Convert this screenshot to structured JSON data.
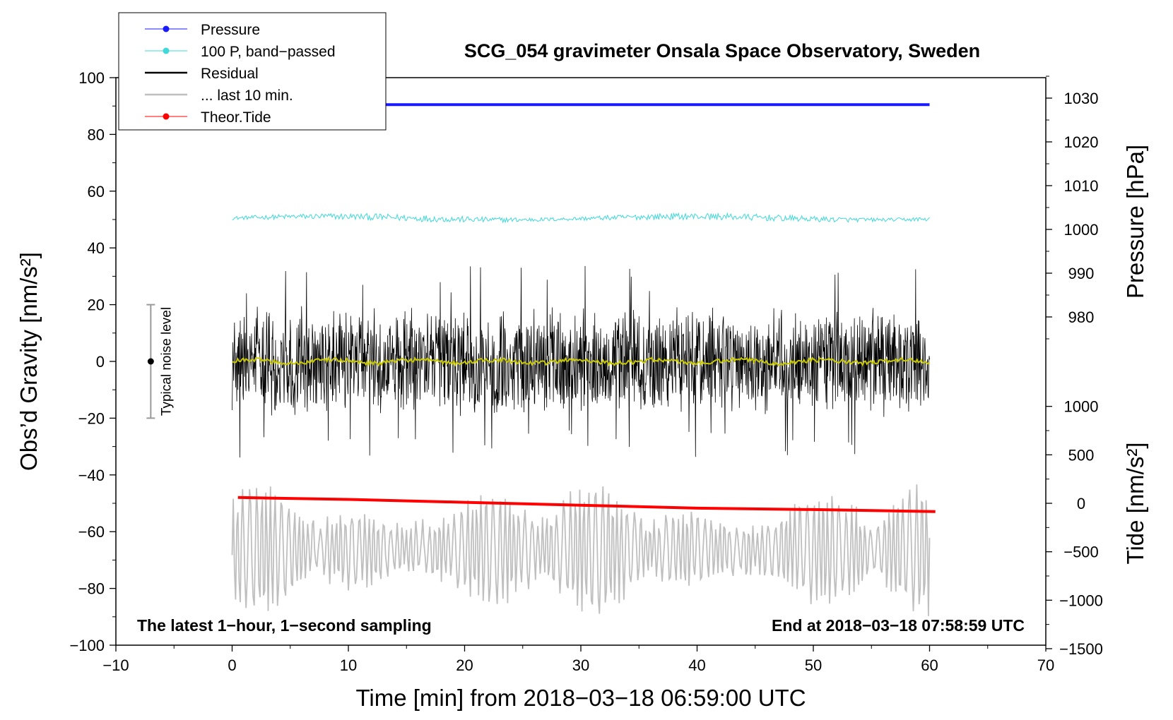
{
  "chart_data": {
    "type": "line",
    "title": "SCG_054 gravimeter Onsala Space Observatory, Sweden",
    "xlabel": "Time [min] from 2018−03−18 06:59:00 UTC",
    "ylabel": "Obs’d Gravity [nm/s²]",
    "ylabel_right_top": "Pressure [hPa]",
    "ylabel_right_bottom": "Tide [nm/s²]",
    "xlim": [
      -10,
      70
    ],
    "ylim": [
      -100,
      100
    ],
    "xticks": [
      -10,
      0,
      10,
      20,
      30,
      40,
      50,
      60,
      70
    ],
    "xtick_labels": [
      "−10",
      "0",
      "10",
      "20",
      "30",
      "40",
      "50",
      "60",
      "70"
    ],
    "yticks": [
      -100,
      -80,
      -60,
      -40,
      -20,
      0,
      20,
      40,
      60,
      80,
      100
    ],
    "ytick_labels": [
      "−100",
      "−80",
      "−60",
      "−40",
      "−20",
      "0",
      "20",
      "40",
      "60",
      "80",
      "100"
    ],
    "pressure_axis": {
      "range": [
        975,
        1035
      ],
      "ticks": [
        980,
        990,
        1000,
        1010,
        1020,
        1030
      ],
      "tick_labels": [
        "980",
        "990",
        "1000",
        "1010",
        "1020",
        "1030"
      ]
    },
    "tide_axis": {
      "range": [
        -1500,
        1500
      ],
      "ticks": [
        -1500,
        -1000,
        -500,
        0,
        500,
        1000
      ],
      "tick_labels": [
        "−1500",
        "−1000",
        "−500",
        "0",
        "500",
        "1000"
      ]
    },
    "legend": {
      "position": "top-left",
      "entries": [
        {
          "label": "Pressure",
          "color": "#1a1aff",
          "marker": true
        },
        {
          "label": "100 P, band−passed",
          "color": "#40d8d8",
          "marker": true
        },
        {
          "label": "Residual",
          "color": "#000000",
          "marker": false
        },
        {
          "label": "... last 10 min.",
          "color": "#bfbfbf",
          "marker": false
        },
        {
          "label": "Theor.Tide",
          "color": "#ff0000",
          "marker": true
        }
      ]
    },
    "series": [
      {
        "name": "Pressure",
        "axis": "pressure",
        "color": "#1a1aff",
        "x": [
          0,
          60
        ],
        "values": [
          1028.5,
          1028.5
        ]
      },
      {
        "name": "100 P, band−passed",
        "axis": "gravity",
        "color": "#40d8d8",
        "x_range": [
          0,
          60
        ],
        "center": 50.5,
        "amplitude": 2
      },
      {
        "name": "Residual",
        "axis": "gravity",
        "color": "#000000",
        "x_range": [
          0,
          60
        ],
        "center": 0,
        "amplitude": 20,
        "extremes": [
          -38,
          35
        ]
      },
      {
        "name": "Residual smoothed",
        "axis": "gravity",
        "color": "#c8c800",
        "x_range": [
          0,
          60
        ],
        "center": 0,
        "amplitude": 1.5
      },
      {
        "name": "... last 10 min.",
        "axis": "gravity",
        "color": "#bfbfbf",
        "x_range": [
          0,
          60
        ],
        "center": -66,
        "amplitude": 22
      },
      {
        "name": "Theor.Tide",
        "axis": "tide",
        "color": "#ff0000",
        "x": [
          0.5,
          10,
          20,
          30,
          40,
          50,
          60.5
        ],
        "values": [
          60,
          40,
          10,
          -20,
          -50,
          -65,
          -85
        ]
      }
    ],
    "noise_indicator": {
      "label": "Typical noise level",
      "x": -7,
      "center": 0,
      "range": [
        -20,
        20
      ]
    },
    "annotations": {
      "left": "The latest 1−hour, 1−second sampling",
      "right": "End at 2018−03−18 07:58:59 UTC"
    }
  }
}
